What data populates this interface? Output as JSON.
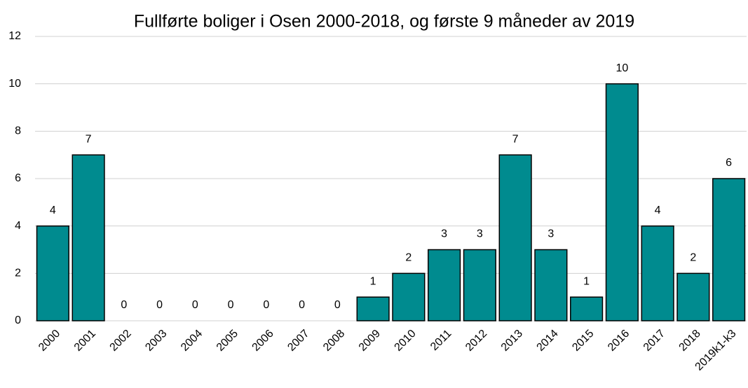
{
  "chart_data": {
    "type": "bar",
    "title": "Fullførte boliger i Osen 2000-2018, og første 9 måneder av 2019",
    "categories": [
      "2000",
      "2001",
      "2002",
      "2003",
      "2004",
      "2005",
      "2006",
      "2007",
      "2008",
      "2009",
      "2010",
      "2011",
      "2012",
      "2013",
      "2014",
      "2015",
      "2016",
      "2017",
      "2018",
      "2019k1-k3"
    ],
    "values": [
      4,
      7,
      0,
      0,
      0,
      0,
      0,
      0,
      0,
      1,
      2,
      3,
      3,
      7,
      3,
      1,
      10,
      4,
      2,
      6
    ],
    "color": "#008b8f",
    "ylim": [
      0,
      12
    ],
    "yticks": [
      0,
      2,
      4,
      6,
      8,
      10,
      12
    ],
    "grid": true
  }
}
